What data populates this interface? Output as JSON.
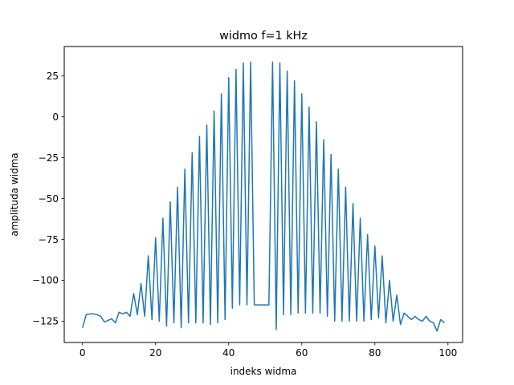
{
  "chart_data": {
    "type": "line",
    "title": "widmo f=1 kHz",
    "xlabel": "indeks widma",
    "ylabel": "amplituda widma",
    "xlim": [
      -5,
      104
    ],
    "ylim": [
      -138,
      43
    ],
    "xticks": [
      0,
      20,
      40,
      60,
      80,
      100
    ],
    "yticks": [
      25,
      0,
      -25,
      -50,
      -75,
      -100,
      -125
    ],
    "ytick_labels": [
      "25",
      "0",
      "−25",
      "−50",
      "−75",
      "−100",
      "−125"
    ],
    "grid": false,
    "series": [
      {
        "color": "#1f77b4",
        "x": [
          0,
          1,
          2,
          3,
          4,
          5,
          6,
          7,
          8,
          9,
          10,
          11,
          12,
          13,
          14,
          15,
          16,
          17,
          18,
          19,
          20,
          21,
          22,
          23,
          24,
          25,
          26,
          27,
          28,
          29,
          30,
          31,
          32,
          33,
          34,
          35,
          36,
          37,
          38,
          39,
          40,
          41,
          42,
          43,
          44,
          45,
          46,
          47,
          48,
          49,
          50,
          51,
          52,
          53,
          54,
          55,
          56,
          57,
          58,
          59,
          60,
          61,
          62,
          63,
          64,
          65,
          66,
          67,
          68,
          69,
          70,
          71,
          72,
          73,
          74,
          75,
          76,
          77,
          78,
          79,
          80,
          81,
          82,
          83,
          84,
          85,
          86,
          87,
          88,
          89,
          90,
          91,
          92,
          93,
          94,
          95,
          96,
          97,
          98,
          99
        ],
        "y": [
          -129,
          -121,
          -120.5,
          -120.5,
          -121,
          -122,
          -125.5,
          -124.5,
          -123.5,
          -126,
          -119.5,
          -120.5,
          -119.5,
          -122,
          -108,
          -121,
          -102,
          -122,
          -85,
          -124,
          -74,
          -125,
          -62,
          -128,
          -52,
          -126,
          -43,
          -129,
          -32,
          -126,
          -22,
          -126,
          -12,
          -126,
          -5,
          -127,
          3.5,
          -126,
          14,
          -124,
          24,
          -117,
          29,
          -115,
          33,
          -115,
          33.5,
          -115,
          -115,
          -115,
          -115,
          -115,
          33.5,
          -130,
          33,
          -121,
          28,
          -121,
          22,
          -120,
          14,
          -120,
          6,
          -120,
          -3,
          -120,
          -14,
          -122,
          -23,
          -125,
          -32,
          -125,
          -43,
          -125,
          -53,
          -125,
          -62,
          -125,
          -72,
          -124,
          -79,
          -123,
          -85,
          -126,
          -100,
          -125,
          -109,
          -127,
          -120,
          -122,
          -124,
          -122,
          -124,
          -125,
          -122,
          -125,
          -126,
          -131,
          -124,
          -126
        ]
      }
    ]
  }
}
